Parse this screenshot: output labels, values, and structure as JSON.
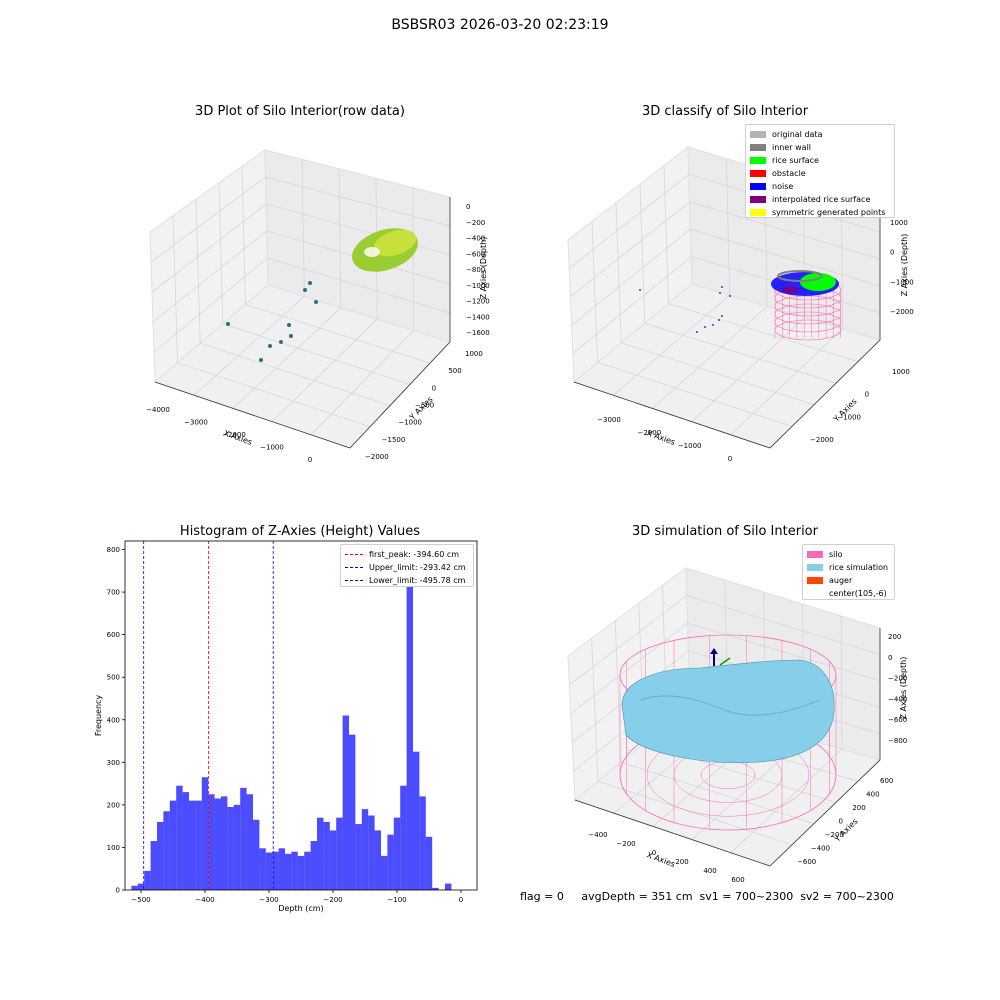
{
  "figure": {
    "title": "BSBSR03 2026-03-20 02:23:19",
    "bottom_text": "flag = 0     avgDepth = 351 cm  sv1 = 700~2300  sv2 = 700~2300"
  },
  "panel1": {
    "title": "3D Plot of Silo Interior(row data)",
    "xlabel": "X Axies",
    "ylabel": "Y Axies",
    "zlabel": "Z Axies (Depth)",
    "xticks": [
      "−4000",
      "−3000",
      "−2000",
      "−1000",
      "0"
    ],
    "yticks": [
      "1000",
      "500",
      "0",
      "−500",
      "−1000",
      "−1500",
      "−2000"
    ],
    "zticks": [
      "0",
      "−200",
      "−400",
      "−600",
      "−800",
      "−1000",
      "−1200",
      "−1400",
      "−1600"
    ]
  },
  "panel2": {
    "title": "3D classify of Silo Interior",
    "xlabel": "X Axies",
    "ylabel": "Y Axies",
    "zlabel": "Z Axies (Depth)",
    "xticks": [
      "−3000",
      "−2000",
      "−1000",
      "0"
    ],
    "yticks": [
      "1000",
      "0",
      "−1000",
      "−2000"
    ],
    "zticks": [
      "1000",
      "0",
      "−1000",
      "−2000"
    ],
    "legend": [
      {
        "label": "original data",
        "color": "#b3b3b3"
      },
      {
        "label": "inner wall",
        "color": "#808080"
      },
      {
        "label": "rice surface",
        "color": "#00ff00"
      },
      {
        "label": "obstacle",
        "color": "#ff0000"
      },
      {
        "label": "noise",
        "color": "#0000ff"
      },
      {
        "label": "interpolated rice surface",
        "color": "#800080"
      },
      {
        "label": "symmetric generated points",
        "color": "#ffff00"
      }
    ]
  },
  "panel3": {
    "title": "Histogram of Z-Axies (Height) Values",
    "xlabel": "Depth (cm)",
    "ylabel": "Frequency",
    "xticks": [
      "−500",
      "−400",
      "−300",
      "−200",
      "−100",
      "0"
    ],
    "yticks": [
      "0",
      "100",
      "200",
      "300",
      "400",
      "500",
      "600",
      "700",
      "800"
    ],
    "legend": [
      {
        "label": "first_peak: -394.60 cm",
        "color": "#ff0000"
      },
      {
        "label": "Upper_limit: -293.42 cm",
        "color": "#0000ff"
      },
      {
        "label": "Lower_limit: -495.78 cm",
        "color": "#0000ff"
      }
    ]
  },
  "panel4": {
    "title": "3D simulation of Silo Interior",
    "xlabel": "X Axies",
    "ylabel": "Y Axies",
    "zlabel": "Z Axies (Depth)",
    "xticks": [
      "−400",
      "−200",
      "0",
      "200",
      "400",
      "600"
    ],
    "yticks": [
      "600",
      "400",
      "200",
      "0",
      "−200",
      "−400",
      "−600"
    ],
    "zticks": [
      "200",
      "0",
      "−200",
      "−400",
      "−600",
      "−800"
    ],
    "legend": [
      {
        "label": "silo",
        "color": "#ff69b4"
      },
      {
        "label": "rice simulation",
        "color": "#87ceeb"
      },
      {
        "label": "auger",
        "color": "#ff4500"
      },
      {
        "label": "center(105,-6)",
        "color": ""
      }
    ]
  },
  "chart_data": {
    "type": "bar",
    "title": "Histogram of Z-Axies (Height) Values",
    "xlabel": "Depth (cm)",
    "ylabel": "Frequency",
    "xlim": [
      -525,
      25
    ],
    "ylim": [
      0,
      820
    ],
    "bin_width": 10,
    "bin_start": -515,
    "values": [
      10,
      15,
      45,
      115,
      160,
      185,
      210,
      245,
      230,
      210,
      210,
      265,
      225,
      215,
      220,
      195,
      200,
      240,
      225,
      165,
      98,
      88,
      90,
      98,
      85,
      90,
      80,
      90,
      115,
      170,
      160,
      140,
      170,
      410,
      365,
      155,
      190,
      175,
      140,
      80,
      130,
      170,
      245,
      775,
      325,
      220,
      125,
      5,
      0,
      15
    ],
    "color": "#0000ff",
    "vlines": [
      {
        "name": "first_peak",
        "x": -394.6,
        "color": "#ff0000"
      },
      {
        "name": "Upper_limit",
        "x": -293.42,
        "color": "#0000ff"
      },
      {
        "name": "Lower_limit",
        "x": -495.78,
        "color": "#0000ff"
      }
    ]
  }
}
